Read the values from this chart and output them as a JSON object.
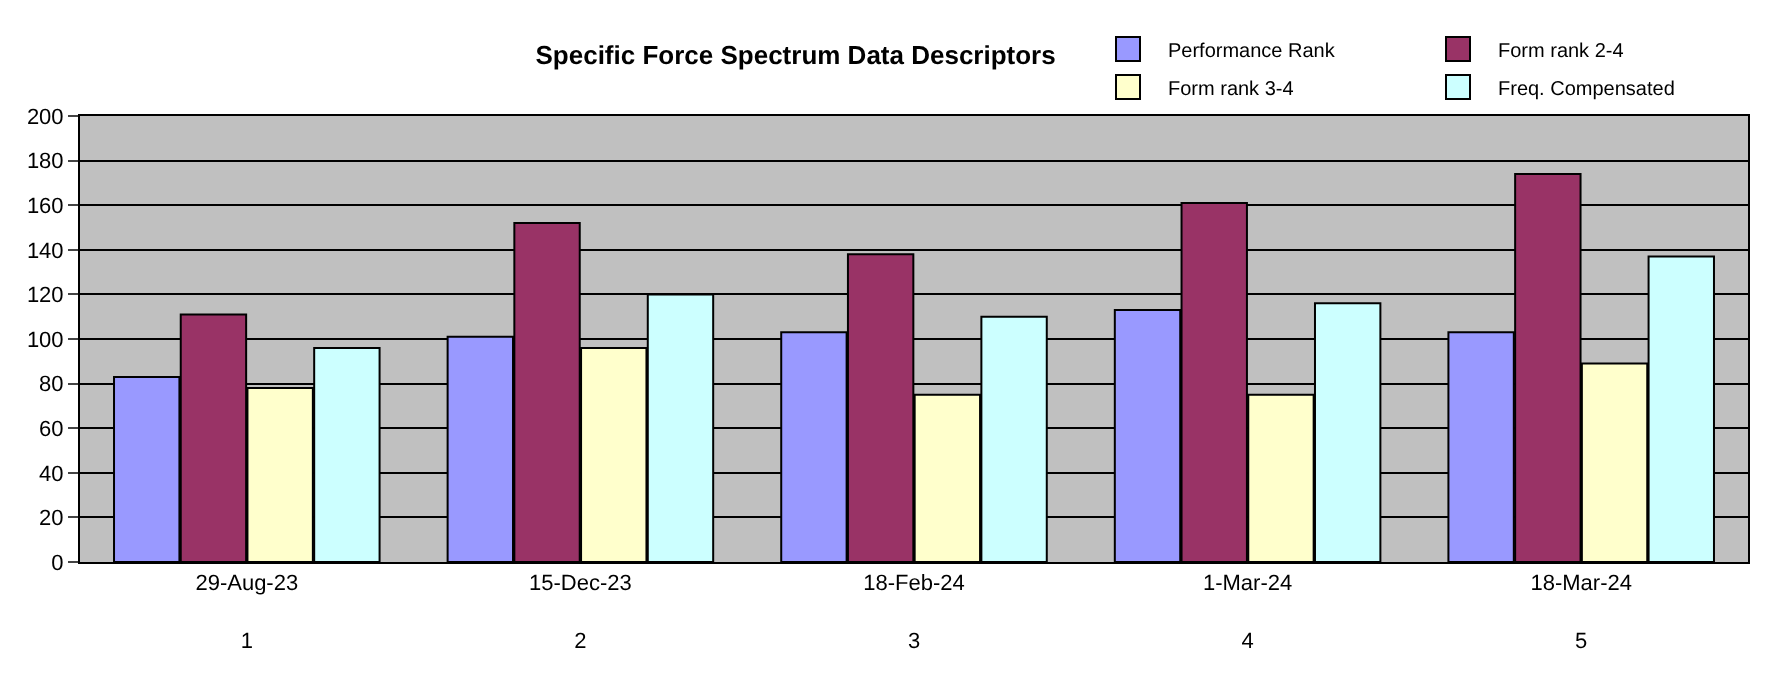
{
  "chart_data": {
    "type": "bar",
    "title": "Specific Force Spectrum Data Descriptors",
    "categories": [
      "29-Aug-23\n1",
      "15-Dec-23\n2",
      "18-Feb-24\n3",
      "1-Mar-24\n4",
      "18-Mar-24\n5"
    ],
    "series": [
      {
        "name": "Performance Rank",
        "color": "#9999ff",
        "values": [
          83,
          101,
          103,
          113,
          103
        ]
      },
      {
        "name": "Form rank 2-4",
        "color": "#993366",
        "values": [
          111,
          152,
          138,
          161,
          174
        ]
      },
      {
        "name": "Form rank 3-4",
        "color": "#ffffcc",
        "values": [
          78,
          96,
          75,
          75,
          89
        ]
      },
      {
        "name": "Freq. Compensated",
        "color": "#ccffff",
        "values": [
          96,
          120,
          110,
          116,
          137
        ]
      }
    ],
    "ylim": [
      0,
      200
    ],
    "yticks": [
      0,
      20,
      40,
      60,
      80,
      100,
      120,
      140,
      160,
      180,
      200
    ],
    "grid": "y",
    "legend": "top right"
  }
}
